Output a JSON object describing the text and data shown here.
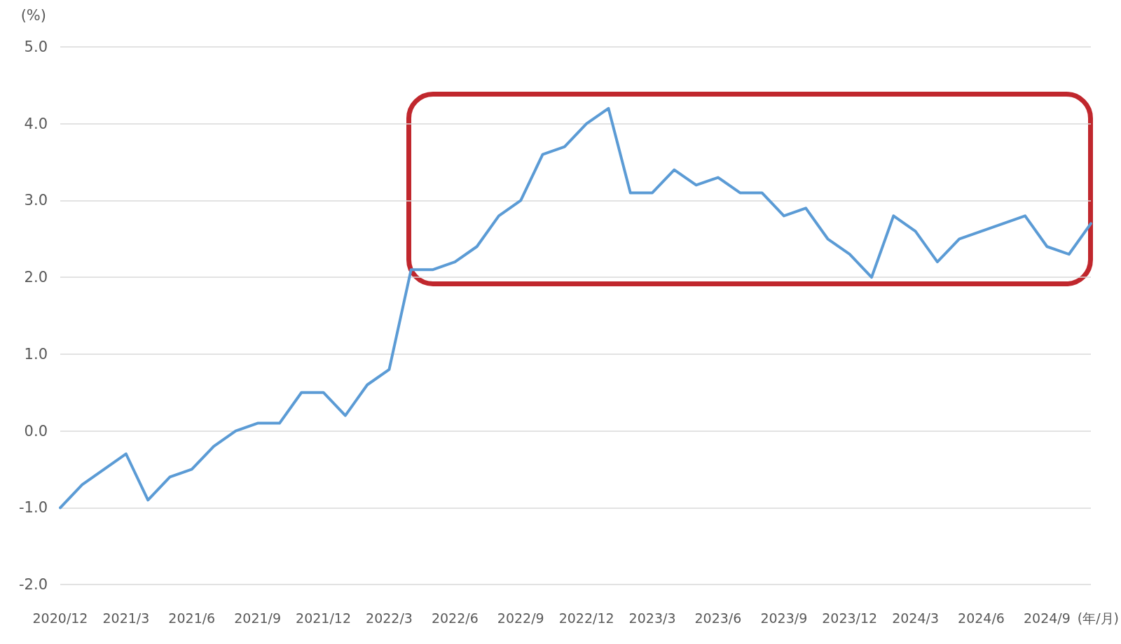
{
  "chart_data": {
    "type": "line",
    "categories": [
      "2020/12",
      null,
      null,
      "2021/3",
      null,
      null,
      "2021/6",
      null,
      null,
      "2021/9",
      null,
      null,
      "2021/12",
      null,
      null,
      "2022/3",
      null,
      null,
      "2022/6",
      null,
      null,
      "2022/9",
      null,
      null,
      "2022/12",
      null,
      null,
      "2023/3",
      null,
      null,
      "2023/6",
      null,
      null,
      "2023/9",
      null,
      null,
      "2023/12",
      null,
      null,
      "2024/3",
      null,
      null,
      "2024/6",
      null,
      null,
      "2024/9",
      null,
      null
    ],
    "values": [
      -1.0,
      -0.7,
      -0.5,
      -0.3,
      -0.9,
      -0.6,
      -0.5,
      -0.2,
      0.0,
      0.1,
      0.1,
      0.5,
      0.5,
      0.2,
      0.6,
      0.8,
      2.1,
      2.1,
      2.2,
      2.4,
      2.8,
      3.0,
      3.6,
      3.7,
      4.0,
      4.2,
      3.1,
      3.1,
      3.4,
      3.2,
      3.3,
      3.1,
      3.1,
      2.8,
      2.9,
      2.5,
      2.3,
      2.0,
      2.8,
      2.6,
      2.2,
      2.5,
      2.6,
      2.7,
      2.8,
      2.4,
      2.3,
      2.7
    ],
    "color": "#5b9bd5",
    "xlabel": "(年/月)",
    "ylabel": "(%)",
    "ylim": [
      -2,
      5
    ],
    "yticks": [
      {
        "value": -2,
        "label": "-2.0"
      },
      {
        "value": -1,
        "label": "-1.0"
      },
      {
        "value": 0,
        "label": "0.0"
      },
      {
        "value": 1,
        "label": "1.0"
      },
      {
        "value": 2,
        "label": "2.0"
      },
      {
        "value": 3,
        "label": "3.0"
      },
      {
        "value": 4,
        "label": "4.0"
      },
      {
        "value": 5,
        "label": "5.0"
      }
    ],
    "grid": "y",
    "marker": "none",
    "line_style": "solid"
  }
}
